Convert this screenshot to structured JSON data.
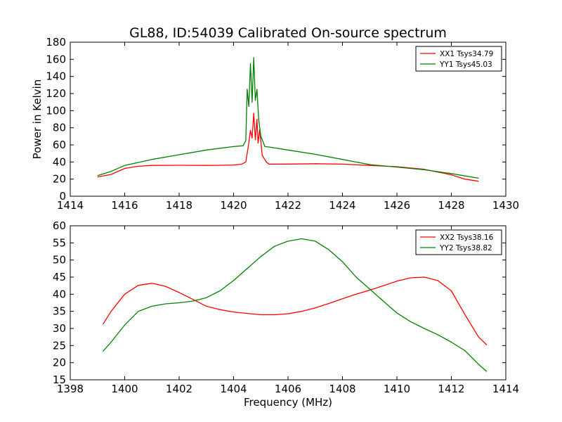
{
  "title": "GL88, ID:54039 Calibrated On-source spectrum",
  "chart_data": [
    {
      "type": "line",
      "ylabel": "Power in Kelvin",
      "xlabel": "",
      "xlim": [
        1414,
        1430
      ],
      "ylim": [
        0,
        180
      ],
      "xticks": [
        1414,
        1416,
        1418,
        1420,
        1422,
        1424,
        1426,
        1428,
        1430
      ],
      "yticks": [
        0,
        20,
        40,
        60,
        80,
        100,
        120,
        140,
        160,
        180
      ],
      "legend_position": "top-right",
      "grid": false,
      "series": [
        {
          "name": "XX1 Tsys34.79",
          "color": "#ff0000",
          "points": [
            [
              1415.0,
              22.5
            ],
            [
              1415.5,
              25.5
            ],
            [
              1416.0,
              32.5
            ],
            [
              1416.5,
              35
            ],
            [
              1417.0,
              36
            ],
            [
              1418.0,
              36.2
            ],
            [
              1419.0,
              36
            ],
            [
              1419.5,
              36.2
            ],
            [
              1420.0,
              36.5
            ],
            [
              1420.3,
              37.5
            ],
            [
              1420.45,
              40
            ],
            [
              1420.55,
              60
            ],
            [
              1420.62,
              77
            ],
            [
              1420.68,
              68
            ],
            [
              1420.74,
              97
            ],
            [
              1420.8,
              66
            ],
            [
              1420.86,
              90
            ],
            [
              1420.9,
              62
            ],
            [
              1420.96,
              78
            ],
            [
              1421.05,
              48
            ],
            [
              1421.2,
              40
            ],
            [
              1421.3,
              37.5
            ],
            [
              1422.0,
              37.6
            ],
            [
              1423.0,
              38
            ],
            [
              1424.0,
              37.5
            ],
            [
              1425.0,
              36
            ],
            [
              1426.0,
              34.5
            ],
            [
              1427.0,
              31.5
            ],
            [
              1428.0,
              25
            ],
            [
              1428.5,
              20
            ],
            [
              1429.0,
              17.5
            ]
          ]
        },
        {
          "name": "YY1 Tsys45.03",
          "color": "#008000",
          "points": [
            [
              1415.0,
              24
            ],
            [
              1415.5,
              29
            ],
            [
              1416.0,
              36
            ],
            [
              1417.0,
              43
            ],
            [
              1418.0,
              48.5
            ],
            [
              1419.0,
              54
            ],
            [
              1420.0,
              58
            ],
            [
              1420.35,
              59
            ],
            [
              1420.45,
              65
            ],
            [
              1420.5,
              125
            ],
            [
              1420.56,
              105
            ],
            [
              1420.62,
              155
            ],
            [
              1420.68,
              110
            ],
            [
              1420.74,
              162
            ],
            [
              1420.8,
              112
            ],
            [
              1420.86,
              125
            ],
            [
              1420.92,
              90
            ],
            [
              1421.0,
              70
            ],
            [
              1421.15,
              58
            ],
            [
              1421.3,
              57.5
            ],
            [
              1422.0,
              54
            ],
            [
              1423.0,
              49
            ],
            [
              1424.0,
              43
            ],
            [
              1425.0,
              37
            ],
            [
              1426.0,
              34
            ],
            [
              1427.0,
              31
            ],
            [
              1428.0,
              26.5
            ],
            [
              1429.0,
              21
            ]
          ]
        }
      ]
    },
    {
      "type": "line",
      "xlabel": "Frequency (MHz)",
      "ylabel": "",
      "xlim": [
        1398,
        1414
      ],
      "ylim": [
        15,
        60
      ],
      "xticks": [
        1398,
        1400,
        1402,
        1404,
        1406,
        1408,
        1410,
        1412,
        1414
      ],
      "yticks": [
        15,
        20,
        25,
        30,
        35,
        40,
        45,
        50,
        55,
        60
      ],
      "legend_position": "top-right",
      "grid": false,
      "series": [
        {
          "name": "XX2 Tsys38.16",
          "color": "#ff0000",
          "points": [
            [
              1399.2,
              31.2
            ],
            [
              1399.5,
              35
            ],
            [
              1400.0,
              40
            ],
            [
              1400.5,
              42.6
            ],
            [
              1401.0,
              43.2
            ],
            [
              1401.5,
              42.3
            ],
            [
              1402.0,
              40.5
            ],
            [
              1402.5,
              38.5
            ],
            [
              1403.0,
              36.5
            ],
            [
              1403.5,
              35.5
            ],
            [
              1404.0,
              34.8
            ],
            [
              1404.5,
              34.4
            ],
            [
              1405.0,
              34
            ],
            [
              1405.5,
              34
            ],
            [
              1406.0,
              34.3
            ],
            [
              1406.5,
              35
            ],
            [
              1407.0,
              36
            ],
            [
              1407.5,
              37.3
            ],
            [
              1408.0,
              38.7
            ],
            [
              1408.5,
              40
            ],
            [
              1409.0,
              41.2
            ],
            [
              1409.5,
              42.5
            ],
            [
              1410.0,
              43.8
            ],
            [
              1410.5,
              44.8
            ],
            [
              1411.0,
              45
            ],
            [
              1411.5,
              44
            ],
            [
              1412.0,
              41
            ],
            [
              1412.5,
              34
            ],
            [
              1413.0,
              27.5
            ],
            [
              1413.3,
              25.2
            ]
          ]
        },
        {
          "name": "YY2 Tsys38.82",
          "color": "#008000",
          "points": [
            [
              1399.2,
              23.3
            ],
            [
              1399.5,
              26
            ],
            [
              1400.0,
              31
            ],
            [
              1400.5,
              35
            ],
            [
              1401.0,
              36.5
            ],
            [
              1401.5,
              37.2
            ],
            [
              1402.0,
              37.5
            ],
            [
              1402.5,
              38
            ],
            [
              1403.0,
              39
            ],
            [
              1403.5,
              41
            ],
            [
              1404.0,
              44
            ],
            [
              1404.5,
              47.5
            ],
            [
              1405.0,
              51
            ],
            [
              1405.5,
              54
            ],
            [
              1406.0,
              55.5
            ],
            [
              1406.5,
              56.2
            ],
            [
              1407.0,
              55.5
            ],
            [
              1407.5,
              53
            ],
            [
              1408.0,
              49.5
            ],
            [
              1408.5,
              45
            ],
            [
              1409.0,
              41.5
            ],
            [
              1409.5,
              38
            ],
            [
              1410.0,
              34.5
            ],
            [
              1410.5,
              32
            ],
            [
              1411.0,
              30
            ],
            [
              1411.5,
              28.2
            ],
            [
              1412.0,
              26
            ],
            [
              1412.5,
              23.5
            ],
            [
              1413.0,
              19.5
            ],
            [
              1413.3,
              17.4
            ]
          ]
        }
      ]
    }
  ]
}
